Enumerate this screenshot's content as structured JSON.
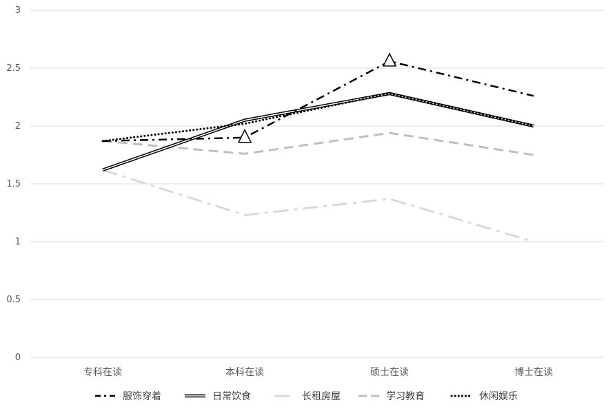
{
  "chart_data": {
    "type": "line",
    "categories": [
      "专科在读",
      "本科在读",
      "硕士在读",
      "博士在读"
    ],
    "ylim": [
      0,
      3
    ],
    "yticks": [
      "0",
      "0.5",
      "1",
      "1.5",
      "2",
      "2.5",
      "3"
    ],
    "grid": true,
    "legend_position": "bottom",
    "series": [
      {
        "name": "服饰穿着",
        "values": [
          1.87,
          1.9,
          2.56,
          2.26
        ],
        "color": "#000000",
        "style": "dash-dot"
      },
      {
        "name": "日常饮食",
        "values": [
          1.62,
          2.05,
          2.28,
          2.0
        ],
        "color": "#000000",
        "style": "double"
      },
      {
        "name": "长租房屋",
        "values": [
          1.62,
          1.23,
          1.37,
          1.0
        ],
        "color": "#d9d9d9",
        "style": "long-dash-dot"
      },
      {
        "name": "学习教育",
        "values": [
          1.87,
          1.76,
          1.94,
          1.75
        ],
        "color": "#bfbfbf",
        "style": "dashed"
      },
      {
        "name": "休闲娱乐",
        "values": [
          1.87,
          2.02,
          2.28,
          2.0
        ],
        "color": "#000000",
        "style": "dotted"
      }
    ],
    "markers": [
      {
        "series": "服饰穿着",
        "category": "本科在读",
        "shape": "triangle"
      },
      {
        "series": "服饰穿着",
        "category": "硕士在读",
        "shape": "triangle"
      }
    ]
  }
}
